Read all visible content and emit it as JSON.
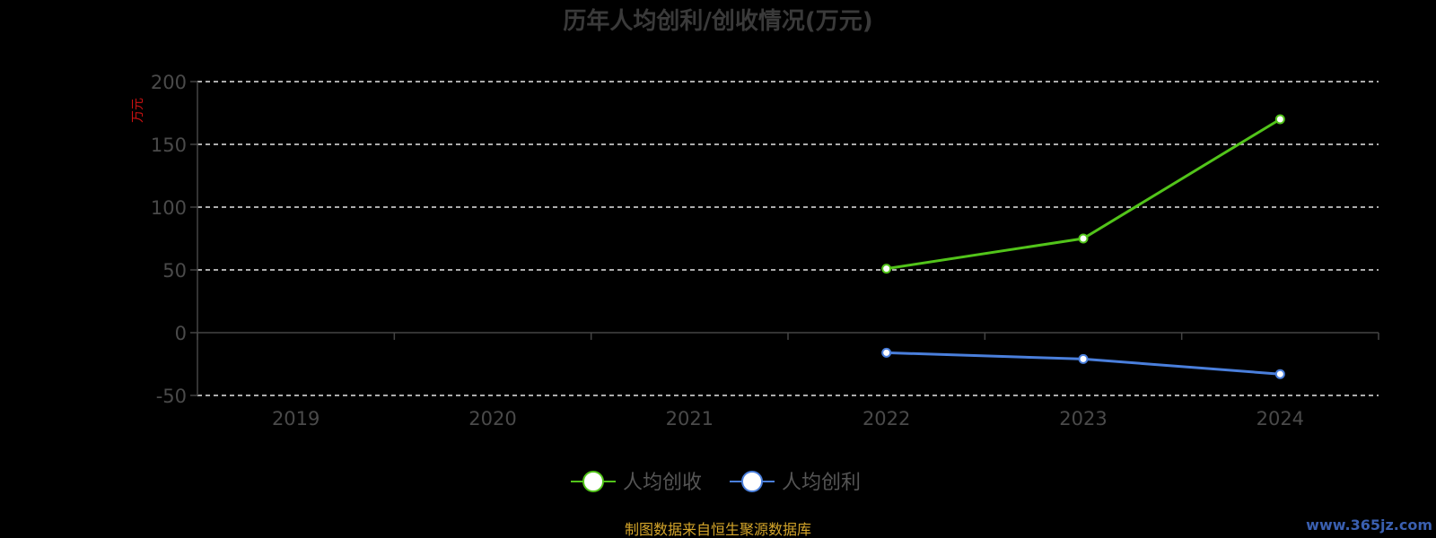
{
  "chart_data": {
    "type": "line",
    "title": "历年人均创利/创收情况(万元)",
    "ylabel": "万元",
    "categories": [
      "2019",
      "2020",
      "2021",
      "2022",
      "2023",
      "2024"
    ],
    "ylim": [
      -50,
      200
    ],
    "yticks": [
      200,
      150,
      100,
      50,
      0,
      -50
    ],
    "grid": true,
    "legend_position": "bottom-center",
    "series": [
      {
        "name": "人均创收",
        "color": "#52c41a",
        "values": [
          null,
          null,
          null,
          51,
          75,
          170
        ]
      },
      {
        "name": "人均创利",
        "color": "#4a7fdc",
        "values": [
          null,
          null,
          null,
          -16,
          -21,
          -33
        ]
      }
    ]
  },
  "footer": {
    "source": "制图数据来自恒生聚源数据库",
    "source_color": "#d4a52a",
    "watermark": "www.365jz.com",
    "watermark_color": "#3a5fb0"
  }
}
